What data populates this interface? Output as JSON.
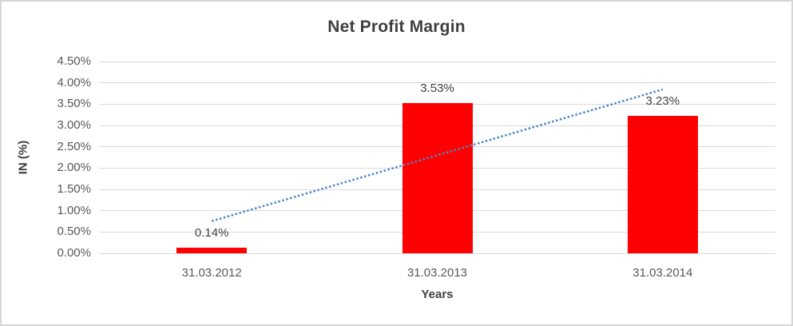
{
  "chart_data": {
    "type": "bar",
    "title": "Net Profit Margin",
    "xlabel": "Years",
    "ylabel": "IN (%)",
    "categories": [
      "31.03.2012",
      "31.03.2013",
      "31.03.2014"
    ],
    "values": [
      0.14,
      3.53,
      3.23
    ],
    "data_labels": [
      "0.14%",
      "3.53%",
      "3.23%"
    ],
    "y_ticks": [
      "0.00%",
      "0.50%",
      "1.00%",
      "1.50%",
      "2.00%",
      "2.50%",
      "3.00%",
      "3.50%",
      "4.00%",
      "4.50%"
    ],
    "ylim": [
      0,
      4.5
    ],
    "grid": true,
    "legend": "none",
    "bar_color": "#ff0000",
    "gridline_color": "#d9d9d9",
    "trendline": {
      "type": "linear",
      "style": "dotted",
      "color": "#4a86c8",
      "spans": "first-to-last-category"
    }
  }
}
